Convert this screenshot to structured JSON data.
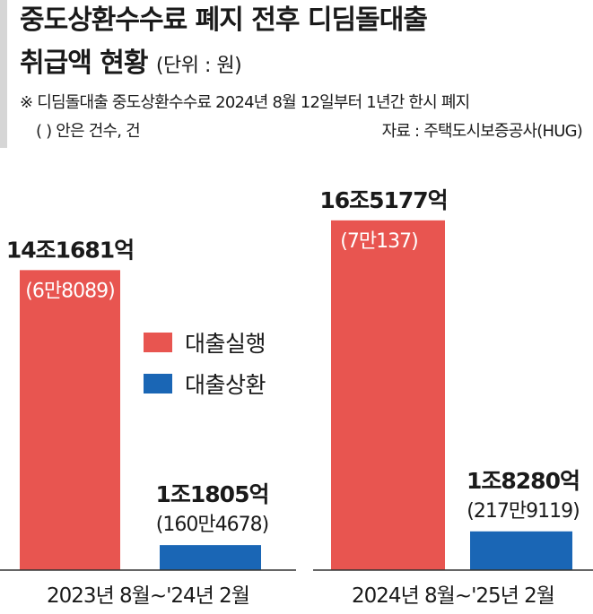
{
  "header": {
    "title_line1": "중도상환수수료 폐지 전후 디딤돌대출",
    "title_line2": "취급액 현황",
    "unit": "(단위 : 원)",
    "note_line1": "※  디딤돌대출 중도상환수수료 2024년 8월 12일부터 1년간 한시 폐지",
    "note_line2": "(   ) 안은 건수, 건",
    "source": "자료 : 주택도시보증공사(HUG)"
  },
  "legend": [
    {
      "label": "대출실행",
      "color": "#e85550"
    },
    {
      "label": "대출상환",
      "color": "#1a66b5"
    }
  ],
  "chart_data": {
    "type": "bar",
    "categories": [
      "2023년 8월~'24년 2월",
      "2024년 8월~'25년 2월"
    ],
    "series": [
      {
        "name": "대출실행",
        "color": "#e85550",
        "values": [
          141681,
          165177
        ],
        "value_labels": [
          "14조1681억",
          "16조5177억"
        ],
        "count_labels": [
          "(6만8089)",
          "(7만137)"
        ]
      },
      {
        "name": "대출상환",
        "color": "#1a66b5",
        "values": [
          11805,
          18280
        ],
        "value_labels": [
          "1조1805억",
          "1조8280억"
        ],
        "count_labels": [
          "(160만4678)",
          "(217만9119)"
        ]
      }
    ],
    "units": "억 원"
  }
}
